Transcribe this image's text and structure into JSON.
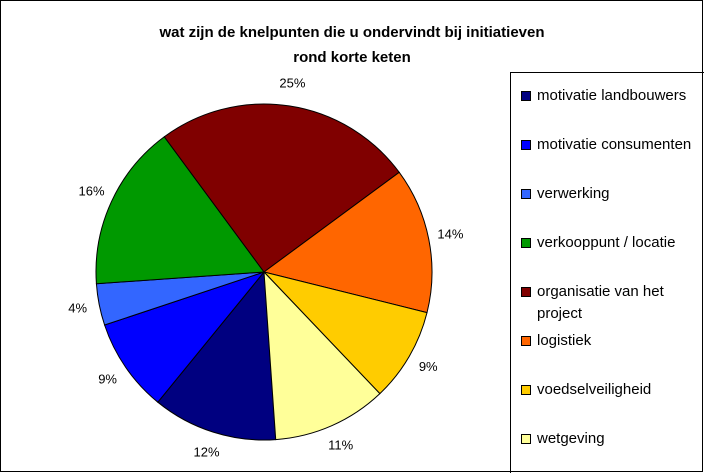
{
  "chart_data": {
    "type": "pie",
    "title": "wat zijn de knelpunten die u ondervindt bij initiatieven rond korte keten",
    "categories": [
      "motivatie landbouwers",
      "motivatie consumenten",
      "verwerking",
      "verkooppunt / locatie",
      "organisatie van het project",
      "logistiek",
      "voedselveiligheid",
      "wetgeving"
    ],
    "values": [
      12,
      9,
      4,
      16,
      25,
      14,
      9,
      11
    ],
    "value_labels": [
      "12%",
      "9%",
      "4%",
      "16%",
      "25%",
      "14%",
      "9%",
      "11%"
    ],
    "colors": [
      "#000080",
      "#0000ff",
      "#3366ff",
      "#009900",
      "#800000",
      "#ff6600",
      "#ffcc00",
      "#ffff99"
    ],
    "legend": "right"
  }
}
